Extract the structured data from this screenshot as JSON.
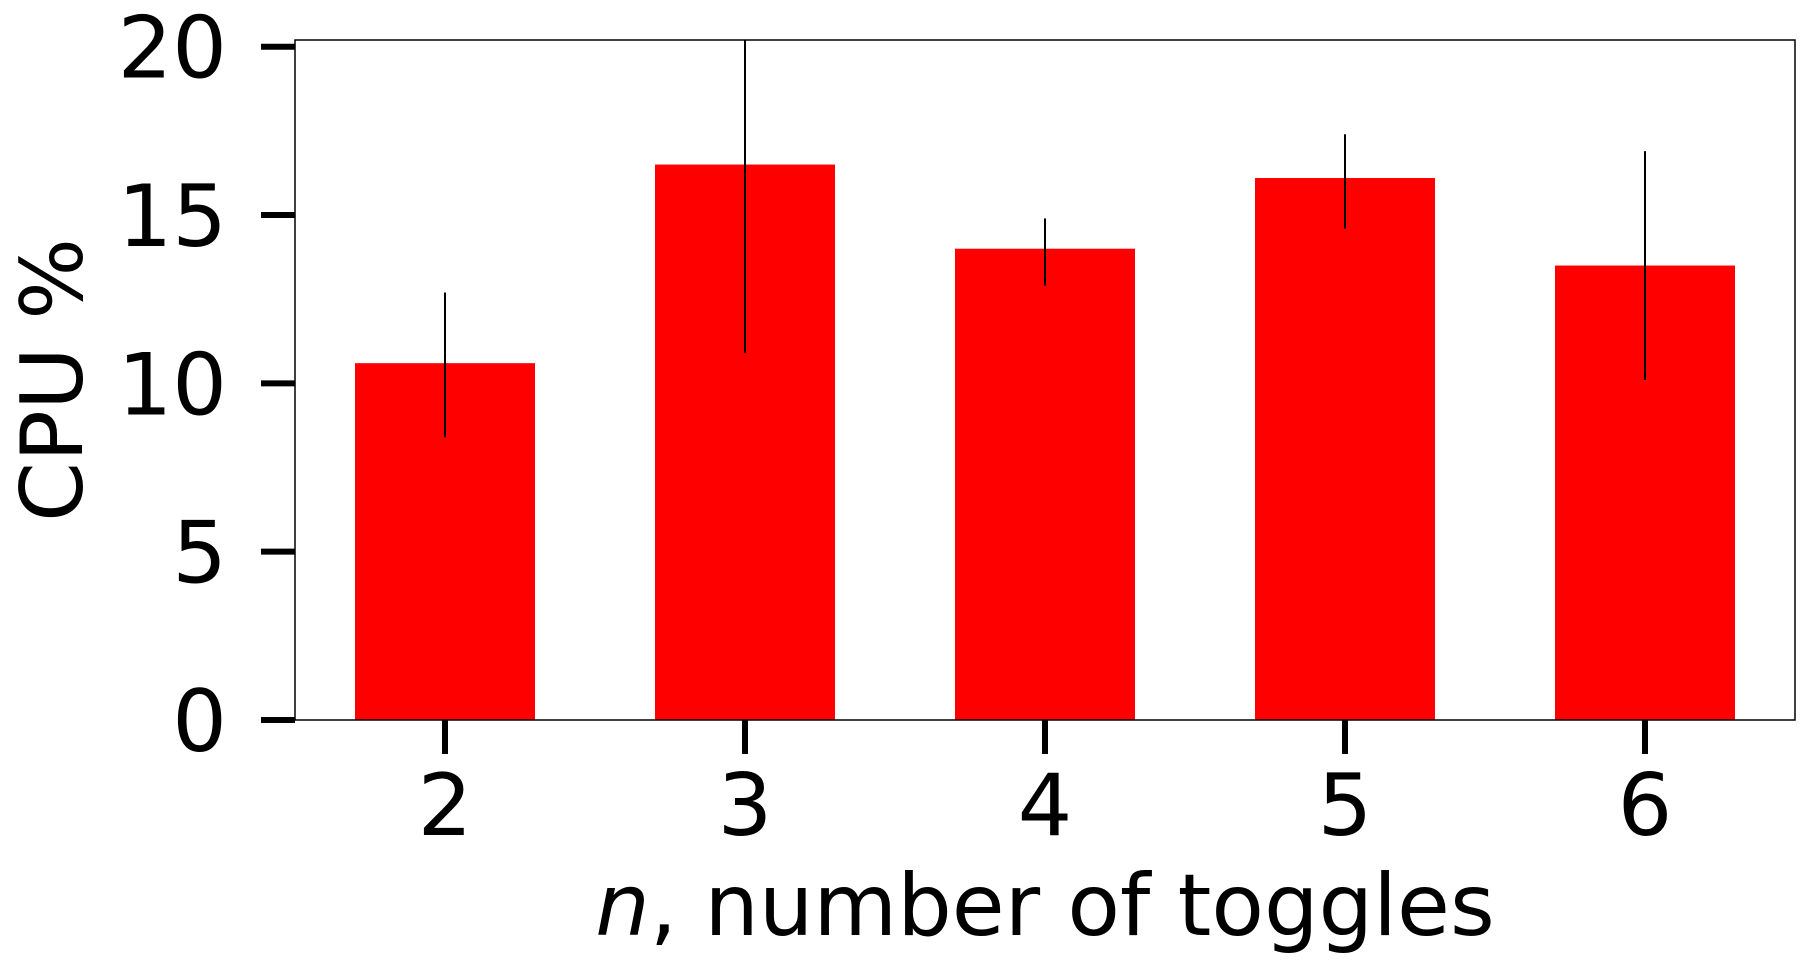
{
  "chart_data": {
    "type": "bar",
    "title": "",
    "xlabel_var": "n",
    "xlabel_rest": ", number of toggles",
    "ylabel": "CPU %",
    "categories": [
      "2",
      "3",
      "4",
      "5",
      "6"
    ],
    "values": [
      10.6,
      16.5,
      14.0,
      16.1,
      13.5
    ],
    "error_lower": [
      8.4,
      10.9,
      12.9,
      14.6,
      10.1
    ],
    "error_upper": [
      12.7,
      20.2,
      14.9,
      17.4,
      16.9
    ],
    "ylim": [
      0,
      20.2
    ],
    "yticks": [
      0,
      5,
      10,
      15,
      20
    ],
    "ytick_labels": [
      "0",
      "5",
      "10",
      "15",
      "20"
    ],
    "bar_color": "#ff0000",
    "errorbar_color": "#000000",
    "grid": false,
    "legend": false
  }
}
